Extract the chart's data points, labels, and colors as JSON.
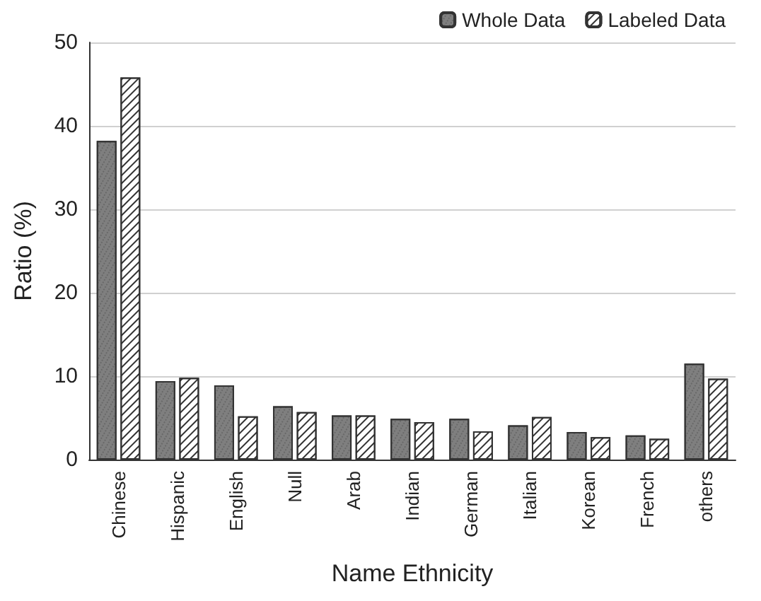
{
  "chart_data": {
    "type": "bar",
    "xlabel": "Name Ethnicity",
    "ylabel": "Ratio (%)",
    "categories": [
      "Chinese",
      "Hispanic",
      "English",
      "Null",
      "Arab",
      "Indian",
      "German",
      "Italian",
      "Korean",
      "French",
      "others"
    ],
    "series": [
      {
        "name": "Whole Data",
        "color": "#7f7f7f",
        "values": [
          38.2,
          9.4,
          8.9,
          6.4,
          5.3,
          4.9,
          4.9,
          4.1,
          3.3,
          2.9,
          11.5
        ]
      },
      {
        "name": "Labeled Data",
        "color": "#ffffff",
        "values": [
          45.8,
          9.8,
          5.2,
          5.7,
          5.3,
          4.5,
          3.4,
          5.1,
          2.7,
          2.5,
          9.7
        ]
      }
    ],
    "ylim": [
      0,
      50
    ],
    "yticks": [
      0,
      10,
      20,
      30,
      40,
      50
    ],
    "grid": "y",
    "legend": "top right"
  }
}
